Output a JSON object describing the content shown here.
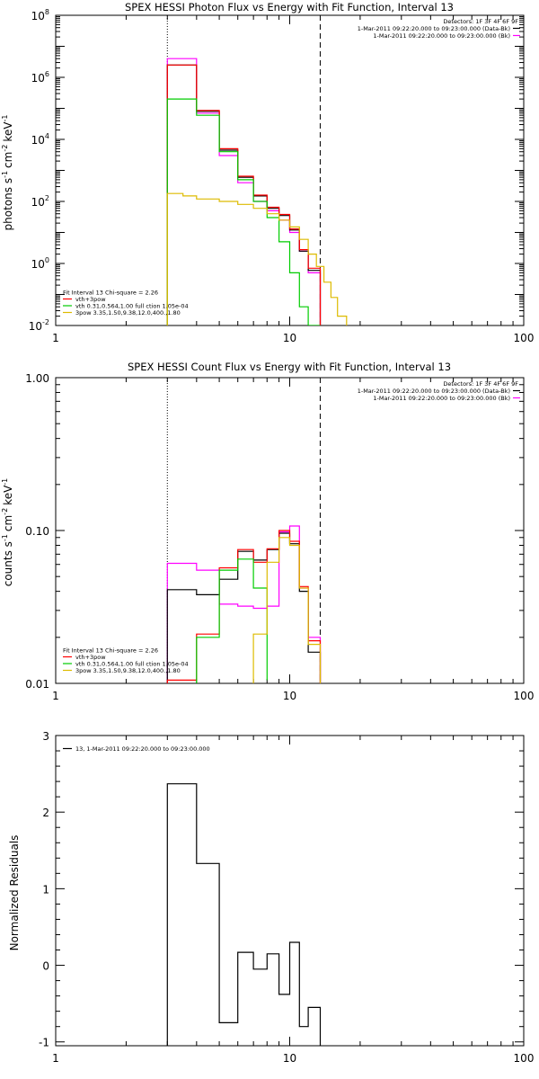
{
  "chart_data": [
    {
      "type": "line",
      "step": true,
      "title": "SPEX HESSI Photon Flux vs Energy with Fit Function, Interval 13",
      "ylabel_main": "photons s",
      "ylabel_cm": "cm",
      "ylabel_kev": "keV",
      "ylabel_exp": "-1",
      "ylabel_exp2": "-2",
      "x_log": true,
      "y_log": true,
      "xlim": [
        1,
        100
      ],
      "ylim": [
        0.01,
        100000000
      ],
      "x_ticks": [
        {
          "v": 1,
          "label": "1"
        },
        {
          "v": 10,
          "label": "10"
        },
        {
          "v": 100,
          "label": "100"
        }
      ],
      "y_ticks": [
        {
          "v": 0.01,
          "base": "10",
          "exp": "-2"
        },
        {
          "v": 1,
          "base": "10",
          "exp": "0"
        },
        {
          "v": 100,
          "base": "10",
          "exp": "2"
        },
        {
          "v": 10000,
          "base": "10",
          "exp": "4"
        },
        {
          "v": 1000000,
          "base": "10",
          "exp": "6"
        },
        {
          "v": 100000000,
          "base": "10",
          "exp": "8"
        }
      ],
      "vlines": [
        {
          "x": 3.0,
          "style": "dotted"
        },
        {
          "x": 13.5,
          "style": "dashed"
        }
      ],
      "legend_tr": [
        {
          "text": "Detectors: 1F 3F 4F 6F 9F",
          "color": ""
        },
        {
          "text": "1-Mar-2011 09:22:20.000 to 09:23:00.000 (Data-Bk)",
          "color": "#000000"
        },
        {
          "text": "1-Mar-2011 09:22:20.000 to 09:23:00.000 (Bk)",
          "color": "#ff00ff"
        }
      ],
      "legend_bl": [
        {
          "text": "Fit Interval 13   Chi-square = 2.26",
          "color": ""
        },
        {
          "text": "vth+3pow",
          "color": "#ff0000"
        },
        {
          "text": "vth 0.31,0.564,1.00  full ction 1.05e-04",
          "color": "#00cc00"
        },
        {
          "text": "3pow 3.35,1.50,9.38,12.0,400.,1.80",
          "color": "#ddbb00"
        }
      ],
      "series": [
        {
          "color": "#ff00ff",
          "edges": [
            3.0,
            3.5,
            4.0,
            5.0,
            6.0,
            7.0,
            8.0,
            9.0,
            10.0,
            11.0,
            12.0,
            13.5
          ],
          "values": [
            4000000,
            4000000,
            70000,
            3000,
            400,
            100,
            50,
            25,
            10,
            2.5,
            0.5
          ]
        },
        {
          "color": "#000000",
          "edges": [
            3.0,
            3.5,
            4.0,
            5.0,
            6.0,
            7.0,
            8.0,
            9.0,
            10.0,
            11.0,
            12.0,
            13.5
          ],
          "values": [
            2500000,
            2500000,
            80000,
            4500,
            600,
            150,
            60,
            35,
            12,
            2.5,
            0.6
          ]
        },
        {
          "color": "#ff0000",
          "edges": [
            3.0,
            3.5,
            4.0,
            5.0,
            6.0,
            7.0,
            8.0,
            9.0,
            10.0,
            11.0,
            12.0,
            13.5
          ],
          "values": [
            2500000,
            2500000,
            85000,
            5000,
            650,
            160,
            65,
            38,
            13,
            2.8,
            0.7
          ]
        },
        {
          "color": "#00cc00",
          "edges": [
            3.0,
            3.5,
            4.0,
            5.0,
            6.0,
            7.0,
            8.0,
            9.0,
            10.0,
            11.0,
            12.0,
            13.5
          ],
          "values": [
            200000,
            200000,
            60000,
            4000,
            500,
            100,
            30,
            5,
            0.5,
            0.04,
            0.01
          ]
        },
        {
          "color": "#ddbb00",
          "edges": [
            3.0,
            3.5,
            4.0,
            5.0,
            6.0,
            7.0,
            8.0,
            9.0,
            10.0,
            11.0,
            12.0,
            13.0,
            14.0,
            15.0,
            16.0,
            17.5
          ],
          "values": [
            180,
            150,
            120,
            100,
            80,
            60,
            40,
            25,
            15,
            6,
            2,
            0.8,
            0.25,
            0.08,
            0.02
          ]
        }
      ]
    },
    {
      "type": "line",
      "step": true,
      "title": "SPEX HESSI Count Flux vs Energy with Fit Function, Interval 13",
      "ylabel_main": "counts s",
      "ylabel_cm": "cm",
      "ylabel_kev": "keV",
      "ylabel_exp": "-1",
      "ylabel_exp2": "-2",
      "x_log": true,
      "y_log": true,
      "xlim": [
        1,
        100
      ],
      "ylim": [
        0.01,
        1
      ],
      "x_ticks": [
        {
          "v": 1,
          "label": "1"
        },
        {
          "v": 10,
          "label": "10"
        },
        {
          "v": 100,
          "label": "100"
        }
      ],
      "y_ticks": [
        {
          "v": 0.01,
          "label": "0.01"
        },
        {
          "v": 0.1,
          "label": "0.10"
        },
        {
          "v": 1,
          "label": "1.00"
        }
      ],
      "vlines": [
        {
          "x": 3.0,
          "style": "dotted"
        },
        {
          "x": 13.5,
          "style": "dashed"
        }
      ],
      "legend_tr": [
        {
          "text": "Detectors: 1F 3F 4F 6F 9F",
          "color": ""
        },
        {
          "text": "1-Mar-2011 09:22:20.000 to 09:23:00.000 (Data-Bk)",
          "color": "#000000"
        },
        {
          "text": "1-Mar-2011 09:22:20.000 to 09:23:00.000 (Bk)",
          "color": "#ff00ff"
        }
      ],
      "legend_bl": [
        {
          "text": "Fit Interval 13   Chi-square = 2.26",
          "color": ""
        },
        {
          "text": "vth+3pow",
          "color": "#ff0000"
        },
        {
          "text": "vth 0.31,0.564,1.00  full ction 1.05e-04",
          "color": "#00cc00"
        },
        {
          "text": "3pow 3.35,1.50,9.38,12.0,400.,1.80",
          "color": "#ddbb00"
        }
      ],
      "series": [
        {
          "color": "#ff00ff",
          "edges": [
            3.0,
            4.0,
            5.0,
            6.0,
            7.0,
            8.0,
            9.0,
            10.0,
            11.0,
            12.0,
            13.0,
            13.5
          ],
          "values": [
            0.061,
            0.055,
            0.033,
            0.032,
            0.031,
            0.032,
            0.098,
            0.107,
            0.042,
            0.02,
            0.02
          ]
        },
        {
          "color": "#000000",
          "edges": [
            3.0,
            4.0,
            5.0,
            6.0,
            7.0,
            8.0,
            9.0,
            10.0,
            11.0,
            12.0,
            13.0,
            13.5
          ],
          "values": [
            0.041,
            0.038,
            0.048,
            0.073,
            0.064,
            0.075,
            0.096,
            0.082,
            0.04,
            0.016,
            0.016
          ]
        },
        {
          "color": "#ff0000",
          "edges": [
            3.0,
            4.0,
            5.0,
            6.0,
            7.0,
            8.0,
            9.0,
            10.0,
            11.0,
            12.0,
            13.0,
            13.5
          ],
          "values": [
            0.0105,
            0.021,
            0.057,
            0.075,
            0.062,
            0.076,
            0.1,
            0.085,
            0.043,
            0.019,
            0.019
          ]
        },
        {
          "color": "#00cc00",
          "edges": [
            4.0,
            5.0,
            6.0,
            7.0,
            8.0
          ],
          "values": [
            0.02,
            0.055,
            0.065,
            0.042,
            0.0105
          ]
        },
        {
          "color": "#ddbb00",
          "edges": [
            7.0,
            8.0,
            9.0,
            10.0,
            11.0,
            12.0,
            13.0,
            13.5
          ],
          "values": [
            0.021,
            0.062,
            0.09,
            0.08,
            0.042,
            0.018,
            0.018
          ]
        }
      ]
    },
    {
      "type": "line",
      "step": true,
      "title": "",
      "ylabel_main": "Normalized Residuals",
      "x_log": true,
      "y_log": false,
      "xlim": [
        1,
        100
      ],
      "ylim": [
        -1.05,
        3
      ],
      "x_ticks": [
        {
          "v": 1,
          "label": "1"
        },
        {
          "v": 10,
          "label": "10"
        },
        {
          "v": 100,
          "label": "100"
        }
      ],
      "y_ticks": [
        {
          "v": -1,
          "label": "-1"
        },
        {
          "v": 0,
          "label": "0"
        },
        {
          "v": 1,
          "label": "1"
        },
        {
          "v": 2,
          "label": "2"
        },
        {
          "v": 3,
          "label": "3"
        }
      ],
      "vlines": [],
      "legend_tr": [],
      "legend_tl": [
        {
          "text": "13,  1-Mar-2011 09:22:20.000 to 09:23:00.000",
          "color": "#000000"
        }
      ],
      "legend_bl": [],
      "series": [
        {
          "color": "#000000",
          "edges": [
            3.0,
            4.0,
            5.0,
            6.0,
            7.0,
            8.0,
            9.0,
            10.0,
            11.0,
            12.0,
            13.5
          ],
          "values": [
            2.37,
            1.33,
            -0.75,
            0.17,
            -0.05,
            0.15,
            -0.38,
            0.3,
            -0.8,
            -0.55
          ]
        }
      ]
    }
  ]
}
